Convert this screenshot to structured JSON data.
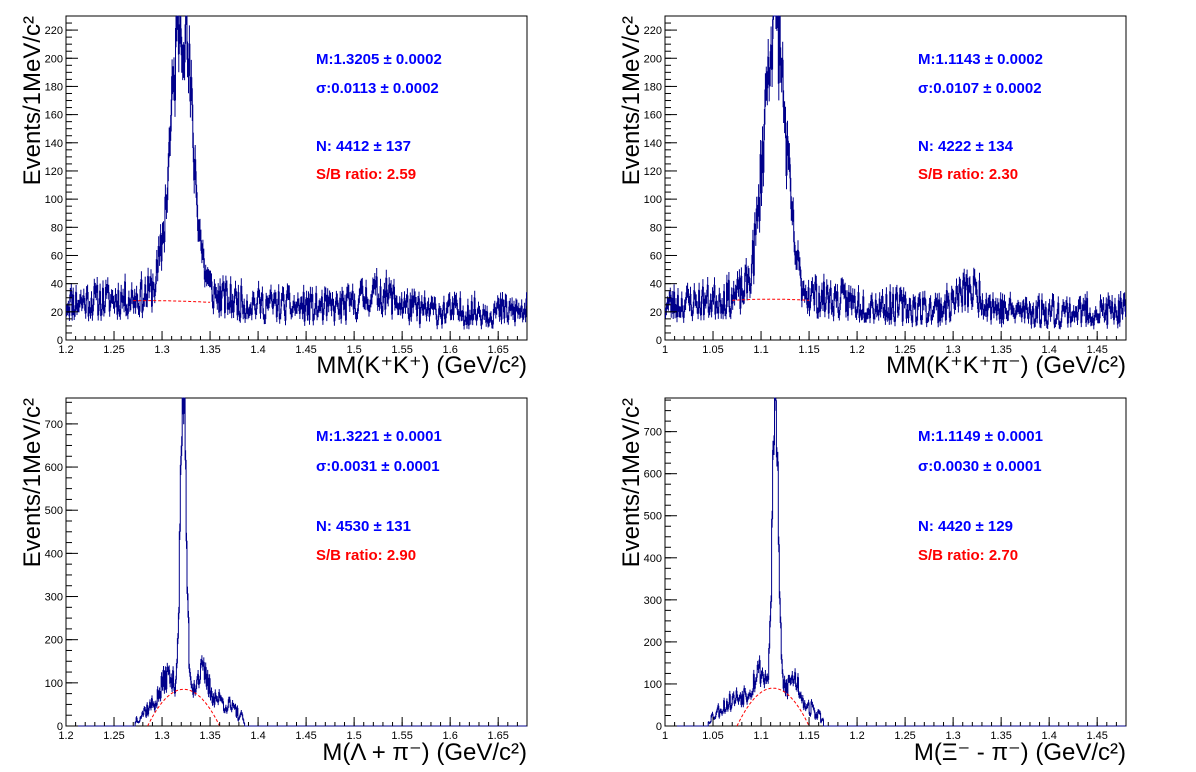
{
  "chart_data": [
    {
      "type": "histogram",
      "xlabel": "MM(K⁺K⁺) (GeV/c²)",
      "ylabel": "Events/1MeV/c²",
      "xlim": [
        1.2,
        1.68
      ],
      "ylim": [
        0,
        230
      ],
      "xticks": [
        1.2,
        1.25,
        1.3,
        1.35,
        1.4,
        1.45,
        1.5,
        1.55,
        1.6,
        1.65
      ],
      "yticks": [
        0,
        20,
        40,
        60,
        80,
        100,
        120,
        140,
        160,
        180,
        200,
        220
      ],
      "annotations": {
        "mean": "M:1.3205 ± 0.0002",
        "sigma": "σ:0.0113 ± 0.0002",
        "count": "N: 4412 ± 137",
        "sb": "S/B ratio:   2.59"
      },
      "colors": {
        "hist": "#00008b",
        "bkg": "#ff0000",
        "mean_text": "#0000ff",
        "sb_text": "#ff0000"
      },
      "shape": {
        "peak": 1.3205,
        "width": 0.011,
        "amp": 182,
        "bkg_base": 20,
        "bkg_amp": 8,
        "bkg_center": 1.28,
        "bkg_width": 0.12,
        "bump_center": 1.525,
        "bump_width": 0.018,
        "bump_amp": 12,
        "noise": 6,
        "seed": 11,
        "bkg_curve_range": [
          1.27,
          1.35
        ]
      }
    },
    {
      "type": "histogram",
      "xlabel": "MM(K⁺K⁺π⁻) (GeV/c²)",
      "ylabel": "Events/1MeV/c²",
      "xlim": [
        1.0,
        1.48
      ],
      "ylim": [
        0,
        230
      ],
      "xticks": [
        1.0,
        1.05,
        1.1,
        1.15,
        1.2,
        1.25,
        1.3,
        1.35,
        1.4,
        1.45
      ],
      "yticks": [
        0,
        20,
        40,
        60,
        80,
        100,
        120,
        140,
        160,
        180,
        200,
        220
      ],
      "annotations": {
        "mean": "M:1.1143 ± 0.0002",
        "sigma": "σ:0.0107 ± 0.0002",
        "count": "N: 4222 ± 134",
        "sb": "S/B ratio:   2.30"
      },
      "colors": {
        "hist": "#00008b",
        "bkg": "#ff0000",
        "mean_text": "#0000ff",
        "sb_text": "#ff0000"
      },
      "shape": {
        "peak": 1.1143,
        "width": 0.011,
        "amp": 178,
        "bkg_base": 20,
        "bkg_amp": 9,
        "bkg_center": 1.11,
        "bkg_width": 0.09,
        "bump_center": 1.318,
        "bump_width": 0.014,
        "bump_amp": 14,
        "noise": 6,
        "seed": 23,
        "bkg_curve_range": [
          1.07,
          1.15
        ]
      }
    },
    {
      "type": "histogram",
      "xlabel": "M(Λ + π⁻) (GeV/c²)",
      "ylabel": "Events/1MeV/c²",
      "xlim": [
        1.2,
        1.68
      ],
      "ylim": [
        0,
        760
      ],
      "xticks": [
        1.2,
        1.25,
        1.3,
        1.35,
        1.4,
        1.45,
        1.5,
        1.55,
        1.6,
        1.65
      ],
      "yticks": [
        0,
        100,
        200,
        300,
        400,
        500,
        600,
        700
      ],
      "annotations": {
        "mean": "M:1.3221 ± 0.0001",
        "sigma": "σ:0.0031 ± 0.0001",
        "count": "N: 4530 ± 131",
        "sb": "S/B ratio:   2.90"
      },
      "colors": {
        "hist": "#00008b",
        "bkg": "#ff0000",
        "mean_text": "#0000ff",
        "sb_text": "#ff0000"
      },
      "shape": {
        "peak": 1.3221,
        "width": 0.003,
        "amp": 640,
        "support": [
          1.272,
          1.386
        ],
        "hump_center": 1.325,
        "hump_amp": 85,
        "side_peaks": [
          1.305,
          1.342
        ],
        "side_amp": 45,
        "noise": 10,
        "seed": 37,
        "bkg_curve_range": [
          1.285,
          1.36
        ]
      }
    },
    {
      "type": "histogram",
      "xlabel": "M(Ξ⁻ - π⁻) (GeV/c²)",
      "ylabel": "Events/1MeV/c²",
      "xlim": [
        1.0,
        1.48
      ],
      "ylim": [
        0,
        780
      ],
      "xticks": [
        1.0,
        1.05,
        1.1,
        1.15,
        1.2,
        1.25,
        1.3,
        1.35,
        1.4,
        1.45
      ],
      "yticks": [
        0,
        100,
        200,
        300,
        400,
        500,
        600,
        700
      ],
      "annotations": {
        "mean": "M:1.1149 ± 0.0001",
        "sigma": "σ:0.0030 ± 0.0001",
        "count": "N: 4420 ± 129",
        "sb": "S/B ratio:   2.70"
      },
      "colors": {
        "hist": "#00008b",
        "bkg": "#ff0000",
        "mean_text": "#0000ff",
        "sb_text": "#ff0000"
      },
      "shape": {
        "peak": 1.1149,
        "width": 0.003,
        "amp": 650,
        "support": [
          1.045,
          1.165
        ],
        "hump_center": 1.112,
        "hump_amp": 90,
        "side_peaks": [
          1.098,
          1.135
        ],
        "side_amp": 45,
        "noise": 10,
        "seed": 53,
        "bkg_curve_range": [
          1.075,
          1.15
        ]
      }
    }
  ]
}
